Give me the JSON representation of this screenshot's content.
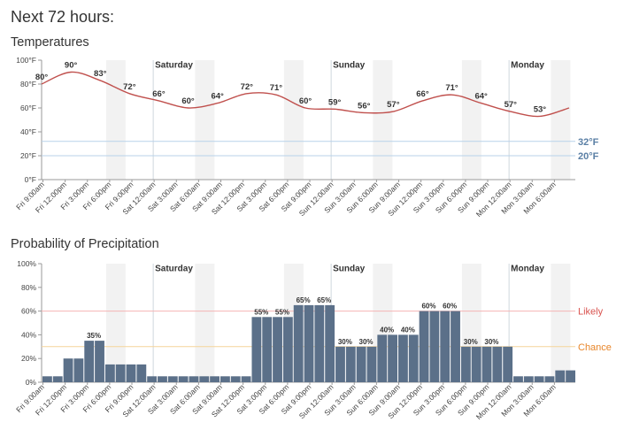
{
  "page": {
    "title": "Next 72 hours:",
    "temperature_section_title": "Temperatures",
    "precipitation_section_title": "Probability of Precipitation"
  },
  "colors": {
    "temp_line": "#c0504d",
    "bar_fill": "#5b7089",
    "shade": "#f2f2f2",
    "freeze_line": "#b8d2ea",
    "freeze_text": "#5a7fa5",
    "likely_line": "#f5b5b5",
    "likely_text": "#d9534f",
    "chance_line": "#f5d49a",
    "chance_text": "#e8862a",
    "grid": "#dddddd",
    "axis": "#999999"
  },
  "time_labels": [
    "Fri 9:00am",
    "Fri 12:00pm",
    "Fri 3:00pm",
    "Fri 6:00pm",
    "Fri 9:00pm",
    "Sat 12:00am",
    "Sat 3:00am",
    "Sat 6:00am",
    "Sat 9:00am",
    "Sat 12:00pm",
    "Sat 3:00pm",
    "Sat 6:00pm",
    "Sat 9:00pm",
    "Sun 12:00am",
    "Sun 3:00am",
    "Sun 6:00am",
    "Sun 9:00am",
    "Sun 12:00pm",
    "Sun 3:00pm",
    "Sun 6:00pm",
    "Sun 9:00pm",
    "Mon 12:00am",
    "Mon 3:00am",
    "Mon 6:00am"
  ],
  "day_labels": [
    {
      "label": "Saturday",
      "index": 5
    },
    {
      "label": "Sunday",
      "index": 13
    },
    {
      "label": "Monday",
      "index": 21
    }
  ],
  "chart_data": [
    {
      "type": "line",
      "title": "Temperatures",
      "y_ticks": [
        "0°F",
        "20°F",
        "40°F",
        "60°F",
        "80°F",
        "100°F"
      ],
      "ylim": [
        0,
        100
      ],
      "series": [
        {
          "values": [
            80,
            90,
            83,
            72,
            66,
            60,
            64,
            72,
            71,
            60,
            59,
            56,
            57,
            66,
            71,
            64,
            57,
            53,
            60
          ]
        }
      ],
      "point_labels": [
        {
          "index": 0,
          "value": 80,
          "label": "80°"
        },
        {
          "index": 1,
          "value": 90,
          "label": "90°"
        },
        {
          "index": 2,
          "value": 83,
          "label": "83°"
        },
        {
          "index": 3,
          "value": 72,
          "label": "72°"
        },
        {
          "index": 4,
          "value": 66,
          "label": "66°"
        },
        {
          "index": 5,
          "value": 60,
          "label": "60°"
        },
        {
          "index": 6,
          "value": 64,
          "label": "64°"
        },
        {
          "index": 7,
          "value": 72,
          "label": "72°"
        },
        {
          "index": 8,
          "value": 71,
          "label": "71°"
        },
        {
          "index": 9,
          "value": 60,
          "label": "60°"
        },
        {
          "index": 10,
          "value": 59,
          "label": "59°"
        },
        {
          "index": 11,
          "value": 56,
          "label": "56°"
        },
        {
          "index": 12,
          "value": 57,
          "label": "57°"
        },
        {
          "index": 13,
          "value": 66,
          "label": "66°"
        },
        {
          "index": 14,
          "value": 71,
          "label": "71°"
        },
        {
          "index": 15,
          "value": 64,
          "label": "64°"
        },
        {
          "index": 16,
          "value": 57,
          "label": "57°"
        },
        {
          "index": 17,
          "value": 53,
          "label": "53°"
        }
      ],
      "reference_lines": [
        {
          "value": 32,
          "label": "32°F"
        },
        {
          "value": 20,
          "label": "20°F"
        }
      ]
    },
    {
      "type": "bar",
      "title": "Probability of Precipitation",
      "y_ticks": [
        "0%",
        "20%",
        "40%",
        "60%",
        "80%",
        "100%"
      ],
      "ylim": [
        0,
        100
      ],
      "values": [
        5,
        5,
        20,
        20,
        35,
        35,
        15,
        15,
        15,
        15,
        5,
        5,
        5,
        5,
        5,
        5,
        5,
        5,
        5,
        5,
        55,
        55,
        55,
        55,
        65,
        65,
        65,
        65,
        30,
        30,
        30,
        30,
        40,
        40,
        40,
        40,
        60,
        60,
        60,
        60,
        30,
        30,
        30,
        30,
        30,
        5,
        5,
        5,
        5,
        10,
        10
      ],
      "value_labels": [
        {
          "start": 4,
          "label": "35%"
        },
        {
          "start": 20,
          "label": "55%"
        },
        {
          "start": 22,
          "label": "55%"
        },
        {
          "start": 24,
          "label": "65%"
        },
        {
          "start": 26,
          "label": "65%"
        },
        {
          "start": 28,
          "label": "30%"
        },
        {
          "start": 30,
          "label": "30%"
        },
        {
          "start": 32,
          "label": "40%"
        },
        {
          "start": 34,
          "label": "40%"
        },
        {
          "start": 36,
          "label": "60%"
        },
        {
          "start": 38,
          "label": "60%"
        },
        {
          "start": 40,
          "label": "30%"
        },
        {
          "start": 42,
          "label": "30%"
        }
      ],
      "reference_lines": [
        {
          "value": 60,
          "label": "Likely"
        },
        {
          "value": 30,
          "label": "Chance"
        }
      ]
    }
  ]
}
